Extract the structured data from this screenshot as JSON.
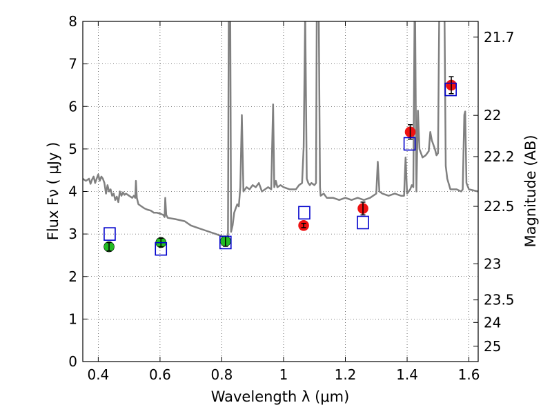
{
  "chart_data": {
    "type": "scatter",
    "title": "",
    "xlabel": "Wavelength  λ (μm)",
    "ylabel": "Flux  Fν  ( μJy )",
    "y2label": "Magnitude (AB)",
    "xlim": [
      0.35,
      1.63
    ],
    "ylim": [
      0,
      8
    ],
    "grid": true,
    "legend": "none",
    "xticks": [
      0.4,
      0.6,
      0.8,
      1.0,
      1.2,
      1.4,
      1.6
    ],
    "xtick_labels": [
      "0.4",
      "0.6",
      "0.8",
      "1",
      "1.2",
      "1.4",
      "1.6"
    ],
    "yticks": [
      0,
      1,
      2,
      3,
      4,
      5,
      6,
      7,
      8
    ],
    "ytick_labels": [
      "0",
      "1",
      "2",
      "3",
      "4",
      "5",
      "6",
      "7",
      "8"
    ],
    "right_ticks": [
      {
        "label": "21.7",
        "flux": 7.63
      },
      {
        "label": "22",
        "flux": 5.79
      },
      {
        "label": "22.2",
        "flux": 4.82
      },
      {
        "label": "22.5",
        "flux": 3.65
      },
      {
        "label": "23",
        "flux": 2.3
      },
      {
        "label": "23.5",
        "flux": 1.45
      },
      {
        "label": "24",
        "flux": 0.92
      },
      {
        "label": "25",
        "flux": 0.36
      }
    ],
    "series": [
      {
        "kind": "line",
        "color": "#808080",
        "points": [
          [
            0.35,
            4.3
          ],
          [
            0.36,
            4.25
          ],
          [
            0.37,
            4.3
          ],
          [
            0.375,
            4.18
          ],
          [
            0.38,
            4.28
          ],
          [
            0.385,
            4.35
          ],
          [
            0.39,
            4.2
          ],
          [
            0.395,
            4.3
          ],
          [
            0.4,
            4.4
          ],
          [
            0.405,
            4.25
          ],
          [
            0.41,
            4.35
          ],
          [
            0.415,
            4.3
          ],
          [
            0.42,
            4.2
          ],
          [
            0.425,
            3.95
          ],
          [
            0.43,
            4.15
          ],
          [
            0.435,
            4.0
          ],
          [
            0.44,
            4.05
          ],
          [
            0.445,
            3.9
          ],
          [
            0.45,
            3.95
          ],
          [
            0.455,
            3.8
          ],
          [
            0.46,
            3.88
          ],
          [
            0.465,
            3.75
          ],
          [
            0.47,
            4.0
          ],
          [
            0.475,
            3.9
          ],
          [
            0.48,
            3.98
          ],
          [
            0.485,
            3.92
          ],
          [
            0.49,
            3.95
          ],
          [
            0.5,
            3.9
          ],
          [
            0.51,
            3.85
          ],
          [
            0.515,
            3.9
          ],
          [
            0.52,
            3.85
          ],
          [
            0.522,
            4.25
          ],
          [
            0.525,
            3.85
          ],
          [
            0.53,
            3.7
          ],
          [
            0.54,
            3.65
          ],
          [
            0.55,
            3.6
          ],
          [
            0.56,
            3.57
          ],
          [
            0.57,
            3.55
          ],
          [
            0.58,
            3.5
          ],
          [
            0.59,
            3.5
          ],
          [
            0.6,
            3.48
          ],
          [
            0.61,
            3.45
          ],
          [
            0.615,
            3.4
          ],
          [
            0.617,
            3.85
          ],
          [
            0.62,
            3.45
          ],
          [
            0.625,
            3.38
          ],
          [
            0.65,
            3.35
          ],
          [
            0.68,
            3.3
          ],
          [
            0.7,
            3.2
          ],
          [
            0.72,
            3.15
          ],
          [
            0.74,
            3.1
          ],
          [
            0.76,
            3.05
          ],
          [
            0.78,
            3.0
          ],
          [
            0.8,
            2.95
          ],
          [
            0.815,
            2.9
          ],
          [
            0.82,
            2.92
          ],
          [
            0.823,
            9
          ],
          [
            0.827,
            9
          ],
          [
            0.83,
            3.05
          ],
          [
            0.835,
            3.2
          ],
          [
            0.84,
            3.5
          ],
          [
            0.845,
            3.6
          ],
          [
            0.85,
            3.7
          ],
          [
            0.855,
            3.65
          ],
          [
            0.86,
            4.1
          ],
          [
            0.865,
            5.8
          ],
          [
            0.87,
            4.0
          ],
          [
            0.88,
            4.1
          ],
          [
            0.89,
            4.05
          ],
          [
            0.9,
            4.15
          ],
          [
            0.91,
            4.1
          ],
          [
            0.92,
            4.2
          ],
          [
            0.93,
            4.0
          ],
          [
            0.94,
            4.05
          ],
          [
            0.95,
            4.1
          ],
          [
            0.96,
            4.05
          ],
          [
            0.963,
            5.05
          ],
          [
            0.966,
            6.05
          ],
          [
            0.97,
            4.1
          ],
          [
            0.975,
            4.25
          ],
          [
            0.98,
            4.1
          ],
          [
            0.99,
            4.15
          ],
          [
            1.0,
            4.1
          ],
          [
            1.02,
            4.05
          ],
          [
            1.04,
            4.05
          ],
          [
            1.05,
            4.15
          ],
          [
            1.06,
            4.2
          ],
          [
            1.065,
            5.05
          ],
          [
            1.07,
            8.2
          ],
          [
            1.075,
            4.3
          ],
          [
            1.08,
            4.2
          ],
          [
            1.085,
            4.15
          ],
          [
            1.09,
            4.2
          ],
          [
            1.1,
            4.15
          ],
          [
            1.105,
            4.2
          ],
          [
            1.108,
            9
          ],
          [
            1.113,
            9
          ],
          [
            1.118,
            4.1
          ],
          [
            1.12,
            3.9
          ],
          [
            1.13,
            3.95
          ],
          [
            1.14,
            3.85
          ],
          [
            1.16,
            3.85
          ],
          [
            1.18,
            3.8
          ],
          [
            1.2,
            3.85
          ],
          [
            1.22,
            3.8
          ],
          [
            1.24,
            3.85
          ],
          [
            1.26,
            3.8
          ],
          [
            1.28,
            3.85
          ],
          [
            1.3,
            3.95
          ],
          [
            1.305,
            4.7
          ],
          [
            1.31,
            4.0
          ],
          [
            1.32,
            3.95
          ],
          [
            1.34,
            3.9
          ],
          [
            1.36,
            3.95
          ],
          [
            1.38,
            3.9
          ],
          [
            1.39,
            3.9
          ],
          [
            1.395,
            4.8
          ],
          [
            1.4,
            3.95
          ],
          [
            1.41,
            4.05
          ],
          [
            1.415,
            4.15
          ],
          [
            1.42,
            4.1
          ],
          [
            1.425,
            9
          ],
          [
            1.43,
            4.0
          ],
          [
            1.435,
            5.9
          ],
          [
            1.44,
            5.0
          ],
          [
            1.45,
            4.8
          ],
          [
            1.46,
            4.85
          ],
          [
            1.47,
            4.95
          ],
          [
            1.475,
            5.4
          ],
          [
            1.48,
            5.2
          ],
          [
            1.49,
            5.0
          ],
          [
            1.495,
            4.85
          ],
          [
            1.5,
            4.9
          ],
          [
            1.505,
            9
          ],
          [
            1.51,
            9
          ],
          [
            1.52,
            9
          ],
          [
            1.525,
            4.6
          ],
          [
            1.53,
            4.3
          ],
          [
            1.54,
            4.05
          ],
          [
            1.56,
            4.05
          ],
          [
            1.575,
            4.0
          ],
          [
            1.58,
            4.05
          ],
          [
            1.585,
            5.8
          ],
          [
            1.588,
            5.88
          ],
          [
            1.592,
            4.2
          ],
          [
            1.6,
            4.05
          ],
          [
            1.63,
            4.0
          ]
        ]
      },
      {
        "kind": "points",
        "marker": "circle",
        "color": "#22bb22",
        "edge": "#000000",
        "points": [
          {
            "x": 0.435,
            "y": 2.7,
            "err": 0.1
          },
          {
            "x": 0.603,
            "y": 2.8,
            "err": 0.1
          },
          {
            "x": 0.812,
            "y": 2.83,
            "err": 0.12
          }
        ]
      },
      {
        "kind": "points",
        "marker": "circle",
        "color": "#ee1111",
        "edge": "#ee1111",
        "points": [
          {
            "x": 1.065,
            "y": 3.2,
            "err": 0.05
          },
          {
            "x": 1.257,
            "y": 3.6,
            "err": 0.15
          },
          {
            "x": 1.41,
            "y": 5.4,
            "err": 0.17
          },
          {
            "x": 1.543,
            "y": 6.5,
            "err": 0.2
          }
        ]
      },
      {
        "kind": "points",
        "marker": "square",
        "color": "#0000cc",
        "fill": "none",
        "points": [
          {
            "x": 0.437,
            "y": 3.0
          },
          {
            "x": 0.603,
            "y": 2.65
          },
          {
            "x": 0.812,
            "y": 2.8
          },
          {
            "x": 1.067,
            "y": 3.5
          },
          {
            "x": 1.257,
            "y": 3.27
          },
          {
            "x": 1.408,
            "y": 5.12
          },
          {
            "x": 1.541,
            "y": 6.4
          }
        ]
      }
    ]
  }
}
